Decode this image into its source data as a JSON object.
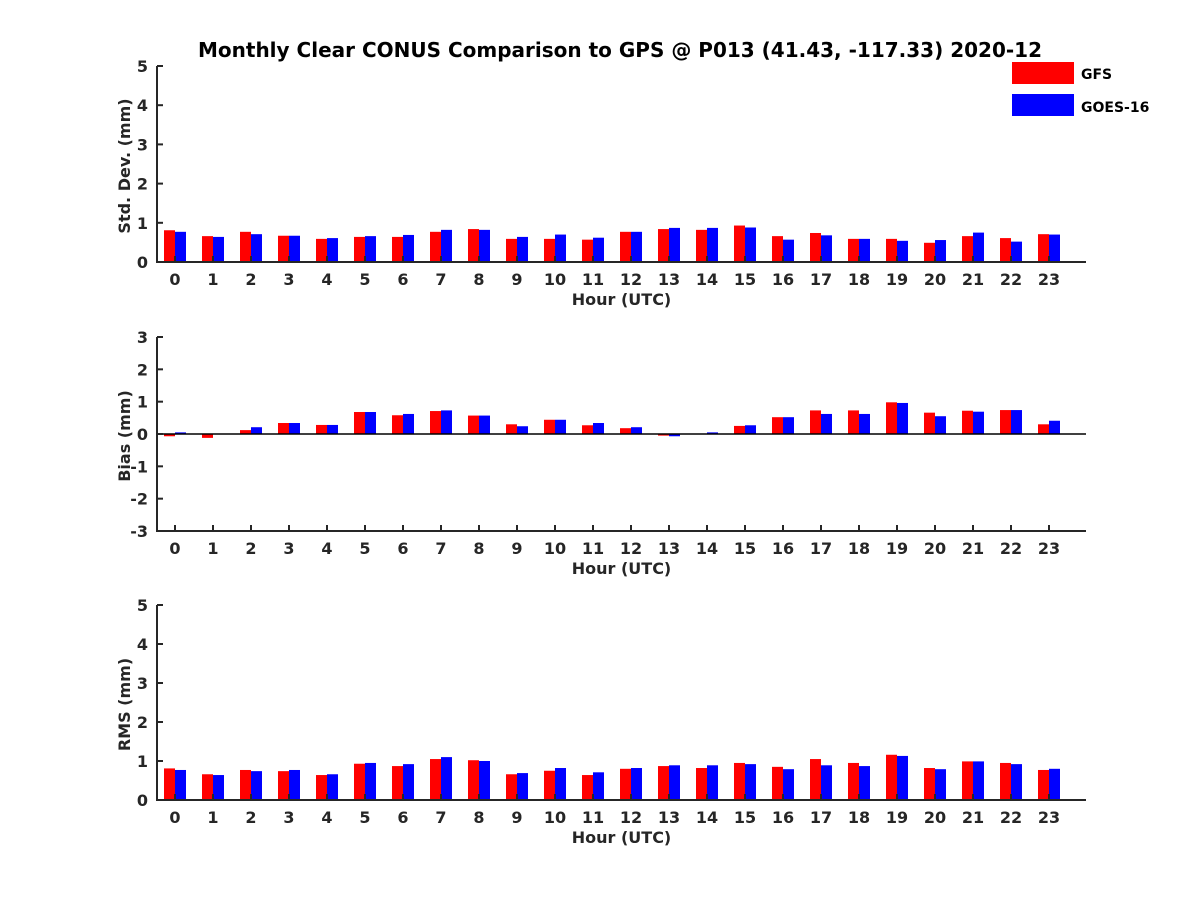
{
  "chart_data": {
    "title": "Monthly Clear CONUS Comparison to GPS @ P013 (41.43, -117.33) 2020-12",
    "type": "bar",
    "categories": [
      "0",
      "1",
      "2",
      "3",
      "4",
      "5",
      "6",
      "7",
      "8",
      "9",
      "10",
      "11",
      "12",
      "13",
      "14",
      "15",
      "16",
      "17",
      "18",
      "19",
      "20",
      "21",
      "22",
      "23"
    ],
    "legend": {
      "placement": "top-right",
      "entries": [
        {
          "name": "GFS",
          "color": "#ff0000"
        },
        {
          "name": "GOES-16",
          "color": "#0000ff"
        }
      ]
    },
    "panels": [
      {
        "ylabel": "Std. Dev. (mm)",
        "xlabel": "Hour (UTC)",
        "ylim": [
          0,
          5
        ],
        "yticks": [
          "0",
          "1",
          "2",
          "3",
          "4",
          "5"
        ],
        "series": [
          {
            "name": "GFS",
            "color": "#ff0000",
            "values": [
              0.81,
              0.66,
              0.77,
              0.67,
              0.59,
              0.64,
              0.64,
              0.77,
              0.84,
              0.59,
              0.59,
              0.57,
              0.77,
              0.84,
              0.82,
              0.93,
              0.66,
              0.74,
              0.59,
              0.59,
              0.49,
              0.66,
              0.61,
              0.71
            ]
          },
          {
            "name": "GOES-16",
            "color": "#0000ff",
            "values": [
              0.77,
              0.64,
              0.71,
              0.67,
              0.61,
              0.66,
              0.69,
              0.82,
              0.82,
              0.64,
              0.7,
              0.62,
              0.77,
              0.87,
              0.87,
              0.88,
              0.57,
              0.68,
              0.59,
              0.54,
              0.56,
              0.75,
              0.52,
              0.7
            ]
          }
        ]
      },
      {
        "ylabel": "Bias (mm)",
        "xlabel": "Hour (UTC)",
        "ylim": [
          -3,
          3
        ],
        "yticks": [
          "-3",
          "-2",
          "-1",
          "0",
          "1",
          "2",
          "3"
        ],
        "series": [
          {
            "name": "GFS",
            "color": "#ff0000",
            "values": [
              -0.07,
              -0.12,
              0.12,
              0.34,
              0.28,
              0.68,
              0.58,
              0.71,
              0.57,
              0.3,
              0.44,
              0.27,
              0.18,
              -0.05,
              0.0,
              0.25,
              0.52,
              0.73,
              0.73,
              0.98,
              0.66,
              0.72,
              0.74,
              0.3
            ]
          },
          {
            "name": "GOES-16",
            "color": "#0000ff",
            "values": [
              0.05,
              0.0,
              0.21,
              0.34,
              0.28,
              0.68,
              0.62,
              0.73,
              0.57,
              0.24,
              0.44,
              0.34,
              0.21,
              -0.07,
              0.05,
              0.27,
              0.52,
              0.62,
              0.62,
              0.96,
              0.55,
              0.69,
              0.74,
              0.41
            ]
          }
        ]
      },
      {
        "ylabel": "RMS (mm)",
        "xlabel": "Hour (UTC)",
        "ylim": [
          0,
          5
        ],
        "yticks": [
          "0",
          "1",
          "2",
          "3",
          "4",
          "5"
        ],
        "series": [
          {
            "name": "GFS",
            "color": "#ff0000",
            "values": [
              0.81,
              0.66,
              0.77,
              0.74,
              0.64,
              0.93,
              0.87,
              1.05,
              1.02,
              0.66,
              0.75,
              0.64,
              0.8,
              0.87,
              0.82,
              0.95,
              0.85,
              1.05,
              0.95,
              1.16,
              0.82,
              0.99,
              0.95,
              0.77
            ]
          },
          {
            "name": "GOES-16",
            "color": "#0000ff",
            "values": [
              0.77,
              0.64,
              0.74,
              0.77,
              0.66,
              0.95,
              0.92,
              1.1,
              1.0,
              0.69,
              0.82,
              0.71,
              0.82,
              0.89,
              0.89,
              0.92,
              0.79,
              0.89,
              0.87,
              1.13,
              0.79,
              0.99,
              0.92,
              0.8
            ]
          }
        ]
      }
    ]
  }
}
